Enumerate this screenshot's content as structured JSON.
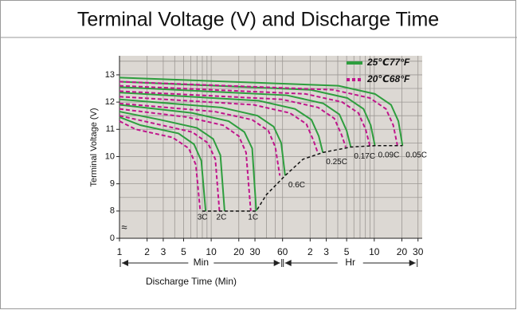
{
  "chart_data": {
    "type": "line",
    "title": "Terminal Voltage (V) and Discharge Time",
    "xlabel": "Discharge Time (Min)",
    "ylabel": "Terminal Voltage (V)",
    "xscale": "log",
    "xlim": [
      1,
      2000
    ],
    "ylim": [
      0,
      13.7
    ],
    "axis_break": [
      0,
      8
    ],
    "axis_break_symbol": "≈",
    "xticks": [
      1,
      2,
      3,
      5,
      10,
      20,
      30,
      60,
      {
        "value": 120,
        "label": "2"
      },
      {
        "value": 180,
        "label": "3"
      },
      {
        "value": 300,
        "label": "5"
      },
      {
        "value": 600,
        "label": "10"
      },
      {
        "value": 1200,
        "label": "20"
      },
      {
        "value": 1800,
        "label": "30"
      }
    ],
    "yticks": [
      0,
      8,
      9,
      10,
      11,
      12,
      13
    ],
    "xgrid": [
      1,
      2,
      3,
      4,
      5,
      6,
      7,
      8,
      9,
      10,
      20,
      30,
      40,
      50,
      60,
      120,
      180,
      240,
      300,
      360,
      420,
      480,
      540,
      600,
      1200,
      1800
    ],
    "ygrid": [
      8,
      8.5,
      9,
      9.5,
      10,
      10.5,
      11,
      11.5,
      12,
      12.5,
      13,
      13.5
    ],
    "grid": true,
    "x_units": [
      {
        "label": "Min",
        "from": 1,
        "to": 60
      },
      {
        "label": "Hr",
        "from": 60,
        "to": 1800
      }
    ],
    "legend": "upper right",
    "series": [
      {
        "name": "25℃77°F",
        "color": "#2e9e3e",
        "dash": false,
        "curves": [
          {
            "label": "3C",
            "x": [
              1,
              1.7,
              4.4,
              6.5,
              7.8,
              8.7
            ],
            "values": [
              11.45,
              11.15,
              10.85,
              10.45,
              9.85,
              8.0
            ]
          },
          {
            "label": "2C",
            "x": [
              1,
              2.8,
              7,
              10.5,
              12.6,
              14
            ],
            "values": [
              11.65,
              11.35,
              11.05,
              10.65,
              10.05,
              8.0
            ]
          },
          {
            "label": "1C",
            "x": [
              1,
              6.2,
              15.5,
              23,
              28,
              31
            ],
            "values": [
              11.9,
              11.6,
              11.3,
              10.9,
              10.3,
              8.0
            ]
          },
          {
            "label": "0.6C",
            "x": [
              1,
              13,
              32,
              48,
              58,
              64
            ],
            "values": [
              12.1,
              11.8,
              11.5,
              11.1,
              10.5,
              9.3
            ]
          },
          {
            "label": "0.25C",
            "x": [
              1,
              33,
              82,
              124,
              149,
              165
            ],
            "values": [
              12.35,
              12.05,
              11.75,
              11.35,
              10.75,
              10.15
            ]
          },
          {
            "label": "0.17C",
            "x": [
              1,
              67,
              167,
              250,
              300,
              333
            ],
            "values": [
              12.55,
              12.25,
              11.95,
              11.55,
              10.95,
              10.35
            ]
          },
          {
            "label": "0.09C",
            "x": [
              1,
              122,
              305,
              458,
              549,
              610
            ],
            "values": [
              12.75,
              12.45,
              12.15,
              11.75,
              11.15,
              10.4
            ]
          },
          {
            "label": "0.05C",
            "x": [
              1,
              244,
              610,
              915,
              1100,
              1220
            ],
            "values": [
              12.9,
              12.6,
              12.3,
              11.9,
              11.3,
              10.4
            ]
          }
        ]
      },
      {
        "name": "20℃68°F",
        "color": "#c0158c",
        "dash": true,
        "curves": [
          {
            "x": [
              1,
              1.5,
              3.8,
              5.7,
              6.8,
              7.6
            ],
            "values": [
              11.3,
              11.0,
              10.7,
              10.3,
              9.7,
              8.0
            ]
          },
          {
            "x": [
              1,
              2.5,
              6.2,
              9.2,
              11.1,
              12.3
            ],
            "values": [
              11.5,
              11.2,
              10.9,
              10.5,
              9.9,
              8.0
            ]
          },
          {
            "x": [
              1,
              5.4,
              13.5,
              20,
              24,
              27
            ],
            "values": [
              11.75,
              11.45,
              11.15,
              10.75,
              10.15,
              8.0
            ]
          },
          {
            "x": [
              1,
              11,
              28,
              42,
              50,
              56
            ],
            "values": [
              11.95,
              11.65,
              11.35,
              10.95,
              10.35,
              9.3
            ]
          },
          {
            "x": [
              1,
              29,
              72,
              109,
              130,
              145
            ],
            "values": [
              12.2,
              11.9,
              11.6,
              11.2,
              10.6,
              10.15
            ]
          },
          {
            "x": [
              1,
              59,
              147,
              220,
              264,
              293
            ],
            "values": [
              12.4,
              12.1,
              11.8,
              11.4,
              10.8,
              10.35
            ]
          },
          {
            "x": [
              1,
              107,
              268,
              403,
              483,
              537
            ],
            "values": [
              12.6,
              12.3,
              12.0,
              11.6,
              11.0,
              10.4
            ]
          },
          {
            "x": [
              1,
              215,
              537,
              805,
              967,
              1074
            ],
            "values": [
              12.75,
              12.45,
              12.15,
              11.75,
              11.15,
              10.4
            ]
          }
        ]
      }
    ],
    "end_voltage_line": {
      "color": "#111111",
      "x": [
        8,
        31,
        40,
        64,
        100,
        165,
        333,
        610,
        1220
      ],
      "values": [
        8,
        8,
        8.6,
        9.3,
        9.9,
        10.15,
        10.35,
        10.4,
        10.4
      ]
    }
  }
}
